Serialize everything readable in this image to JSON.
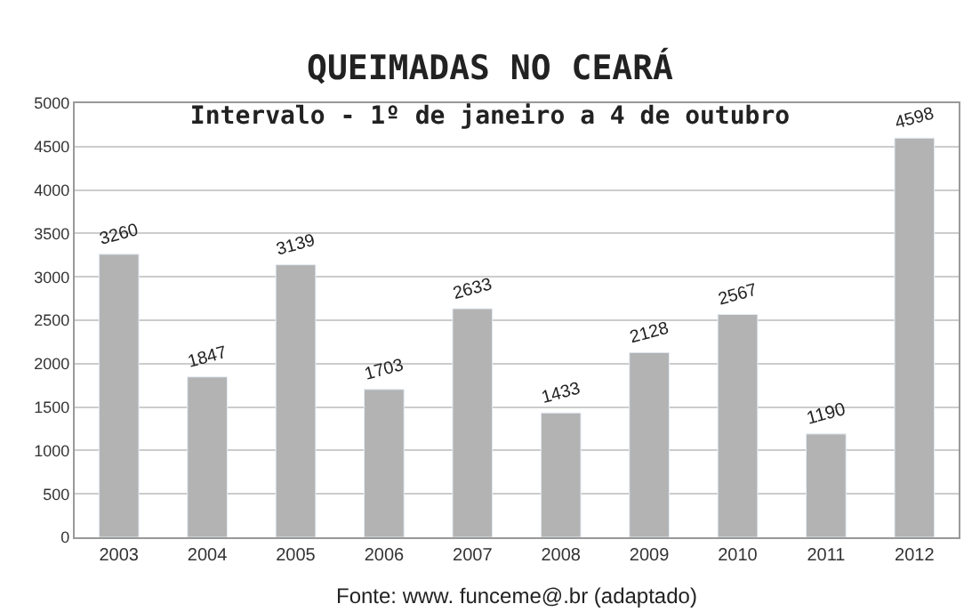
{
  "chart_data": {
    "type": "bar",
    "title": "QUEIMADAS NO CEARÁ",
    "subtitle": "Intervalo - 1º de janeiro a 4 de outubro",
    "categories": [
      "2003",
      "2004",
      "2005",
      "2006",
      "2007",
      "2008",
      "2009",
      "2010",
      "2011",
      "2012"
    ],
    "values": [
      3260,
      1847,
      3139,
      1703,
      2633,
      1433,
      2128,
      2567,
      1190,
      4598
    ],
    "color": "#b3b3b3",
    "ylim": [
      0,
      5000
    ],
    "yticks": [
      0,
      500,
      1000,
      1500,
      2000,
      2500,
      3000,
      3500,
      4000,
      4500,
      5000
    ],
    "grid": "y",
    "data_labels": true,
    "annotations": [
      "Fonte: www. funceme@.br (adaptado)"
    ]
  }
}
